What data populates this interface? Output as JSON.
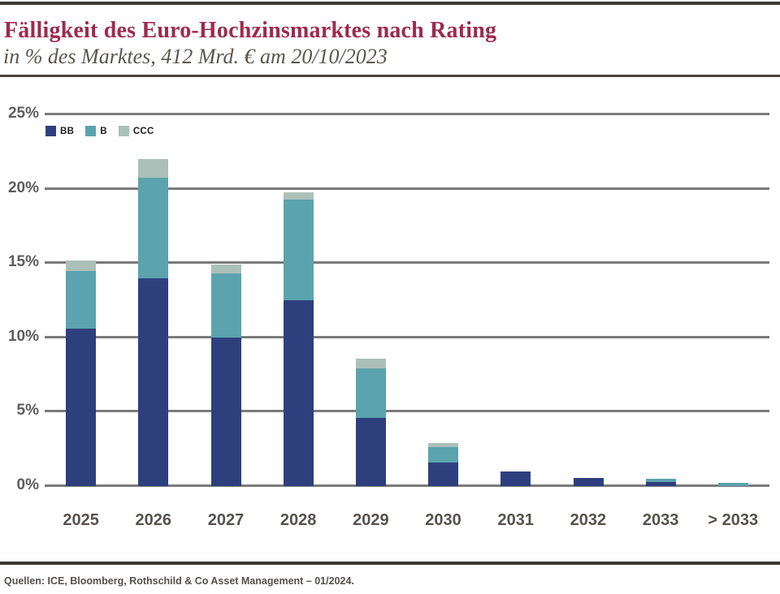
{
  "header": {
    "title": "Fälligkeit des Euro-Hochzinsmarktes nach Rating",
    "subtitle": "in % des Marktes, 412 Mrd. € am 20/10/2023"
  },
  "footer": {
    "sources": "Quellen: ICE, Bloomberg, Rothschild & Co Asset Management – 01/2024."
  },
  "colors": {
    "title_accent": "#9e2a4e",
    "subtitle_gray": "#5b554e",
    "rule_dark": "#3d3833",
    "gridline_gray": "#7b7b7b",
    "axis_label_gray": "#56514c",
    "bb_blue": "#2e3f7e",
    "b_teal": "#5ba3ae",
    "ccc_sage": "#abc0b9"
  },
  "chart_data": {
    "type": "bar",
    "stacked": true,
    "title": "Fälligkeit des Euro-Hochzinsmarktes nach Rating",
    "subtitle": "in % des Marktes, 412 Mrd. € am 20/10/2023",
    "xlabel": "",
    "ylabel": "% des Marktes",
    "categories": [
      "2025",
      "2026",
      "2027",
      "2028",
      "2029",
      "2030",
      "2031",
      "2032",
      "2033",
      "> 2033"
    ],
    "series": [
      {
        "name": "BB",
        "color": "#2e3f7e",
        "values": [
          10.6,
          14.0,
          10.0,
          12.5,
          4.6,
          1.6,
          1.0,
          0.55,
          0.25,
          0
        ]
      },
      {
        "name": "B",
        "color": "#5ba3ae",
        "values": [
          3.9,
          6.75,
          4.3,
          6.8,
          3.3,
          1.0,
          0,
          0,
          0.25,
          0.2
        ]
      },
      {
        "name": "CCC",
        "color": "#abc0b9",
        "values": [
          0.7,
          1.25,
          0.6,
          0.5,
          0.7,
          0.3,
          0,
          0,
          0,
          0
        ]
      }
    ],
    "totals": [
      15.2,
      22.0,
      14.9,
      19.8,
      8.6,
      2.9,
      1.0,
      0.55,
      0.5,
      0.2
    ],
    "ylim": [
      0,
      25
    ],
    "ytick_values": [
      0,
      5,
      10,
      15,
      20,
      25
    ],
    "ytick_labels": [
      "0%",
      "5%",
      "10%",
      "15%",
      "20%",
      "25%"
    ],
    "grid": true,
    "legend_position": "top-left-inside"
  }
}
